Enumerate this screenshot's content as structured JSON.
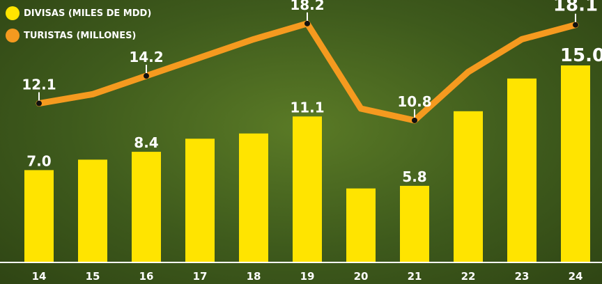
{
  "colors": {
    "bar": "#ffe400",
    "line": "#f59a1f",
    "marker": "#111111",
    "text": "#ffffff",
    "axis": "#ffffff"
  },
  "legend": [
    {
      "label": "DIVISAS (MILES DE MDD)",
      "color": "#ffe400"
    },
    {
      "label": "TURISTAS (MILLONES)",
      "color": "#f59a1f"
    }
  ],
  "chart_data": {
    "type": "bar",
    "categories": [
      "14",
      "15",
      "16",
      "17",
      "18",
      "19",
      "20",
      "21",
      "22",
      "23",
      "24"
    ],
    "ylim": [
      0,
      20
    ],
    "grid": false,
    "legend_position": "top-left",
    "series": [
      {
        "name": "DIVISAS (MILES DE MDD)",
        "type": "bar",
        "values": [
          7.0,
          7.8,
          8.4,
          9.4,
          9.8,
          11.1,
          5.6,
          5.8,
          11.5,
          14.0,
          15.0
        ],
        "data_labels": [
          "7.0",
          null,
          "8.4",
          null,
          null,
          "11.1",
          null,
          "5.8",
          null,
          null,
          "15.0"
        ]
      },
      {
        "name": "TURISTAS (MILLONES)",
        "type": "line",
        "values": [
          12.1,
          12.8,
          14.2,
          15.6,
          17.0,
          18.2,
          11.7,
          10.8,
          14.5,
          17.0,
          18.1
        ],
        "data_labels": [
          "12.1",
          null,
          "14.2",
          null,
          null,
          "18.2",
          null,
          "10.8",
          null,
          null,
          "18.1"
        ]
      }
    ]
  }
}
